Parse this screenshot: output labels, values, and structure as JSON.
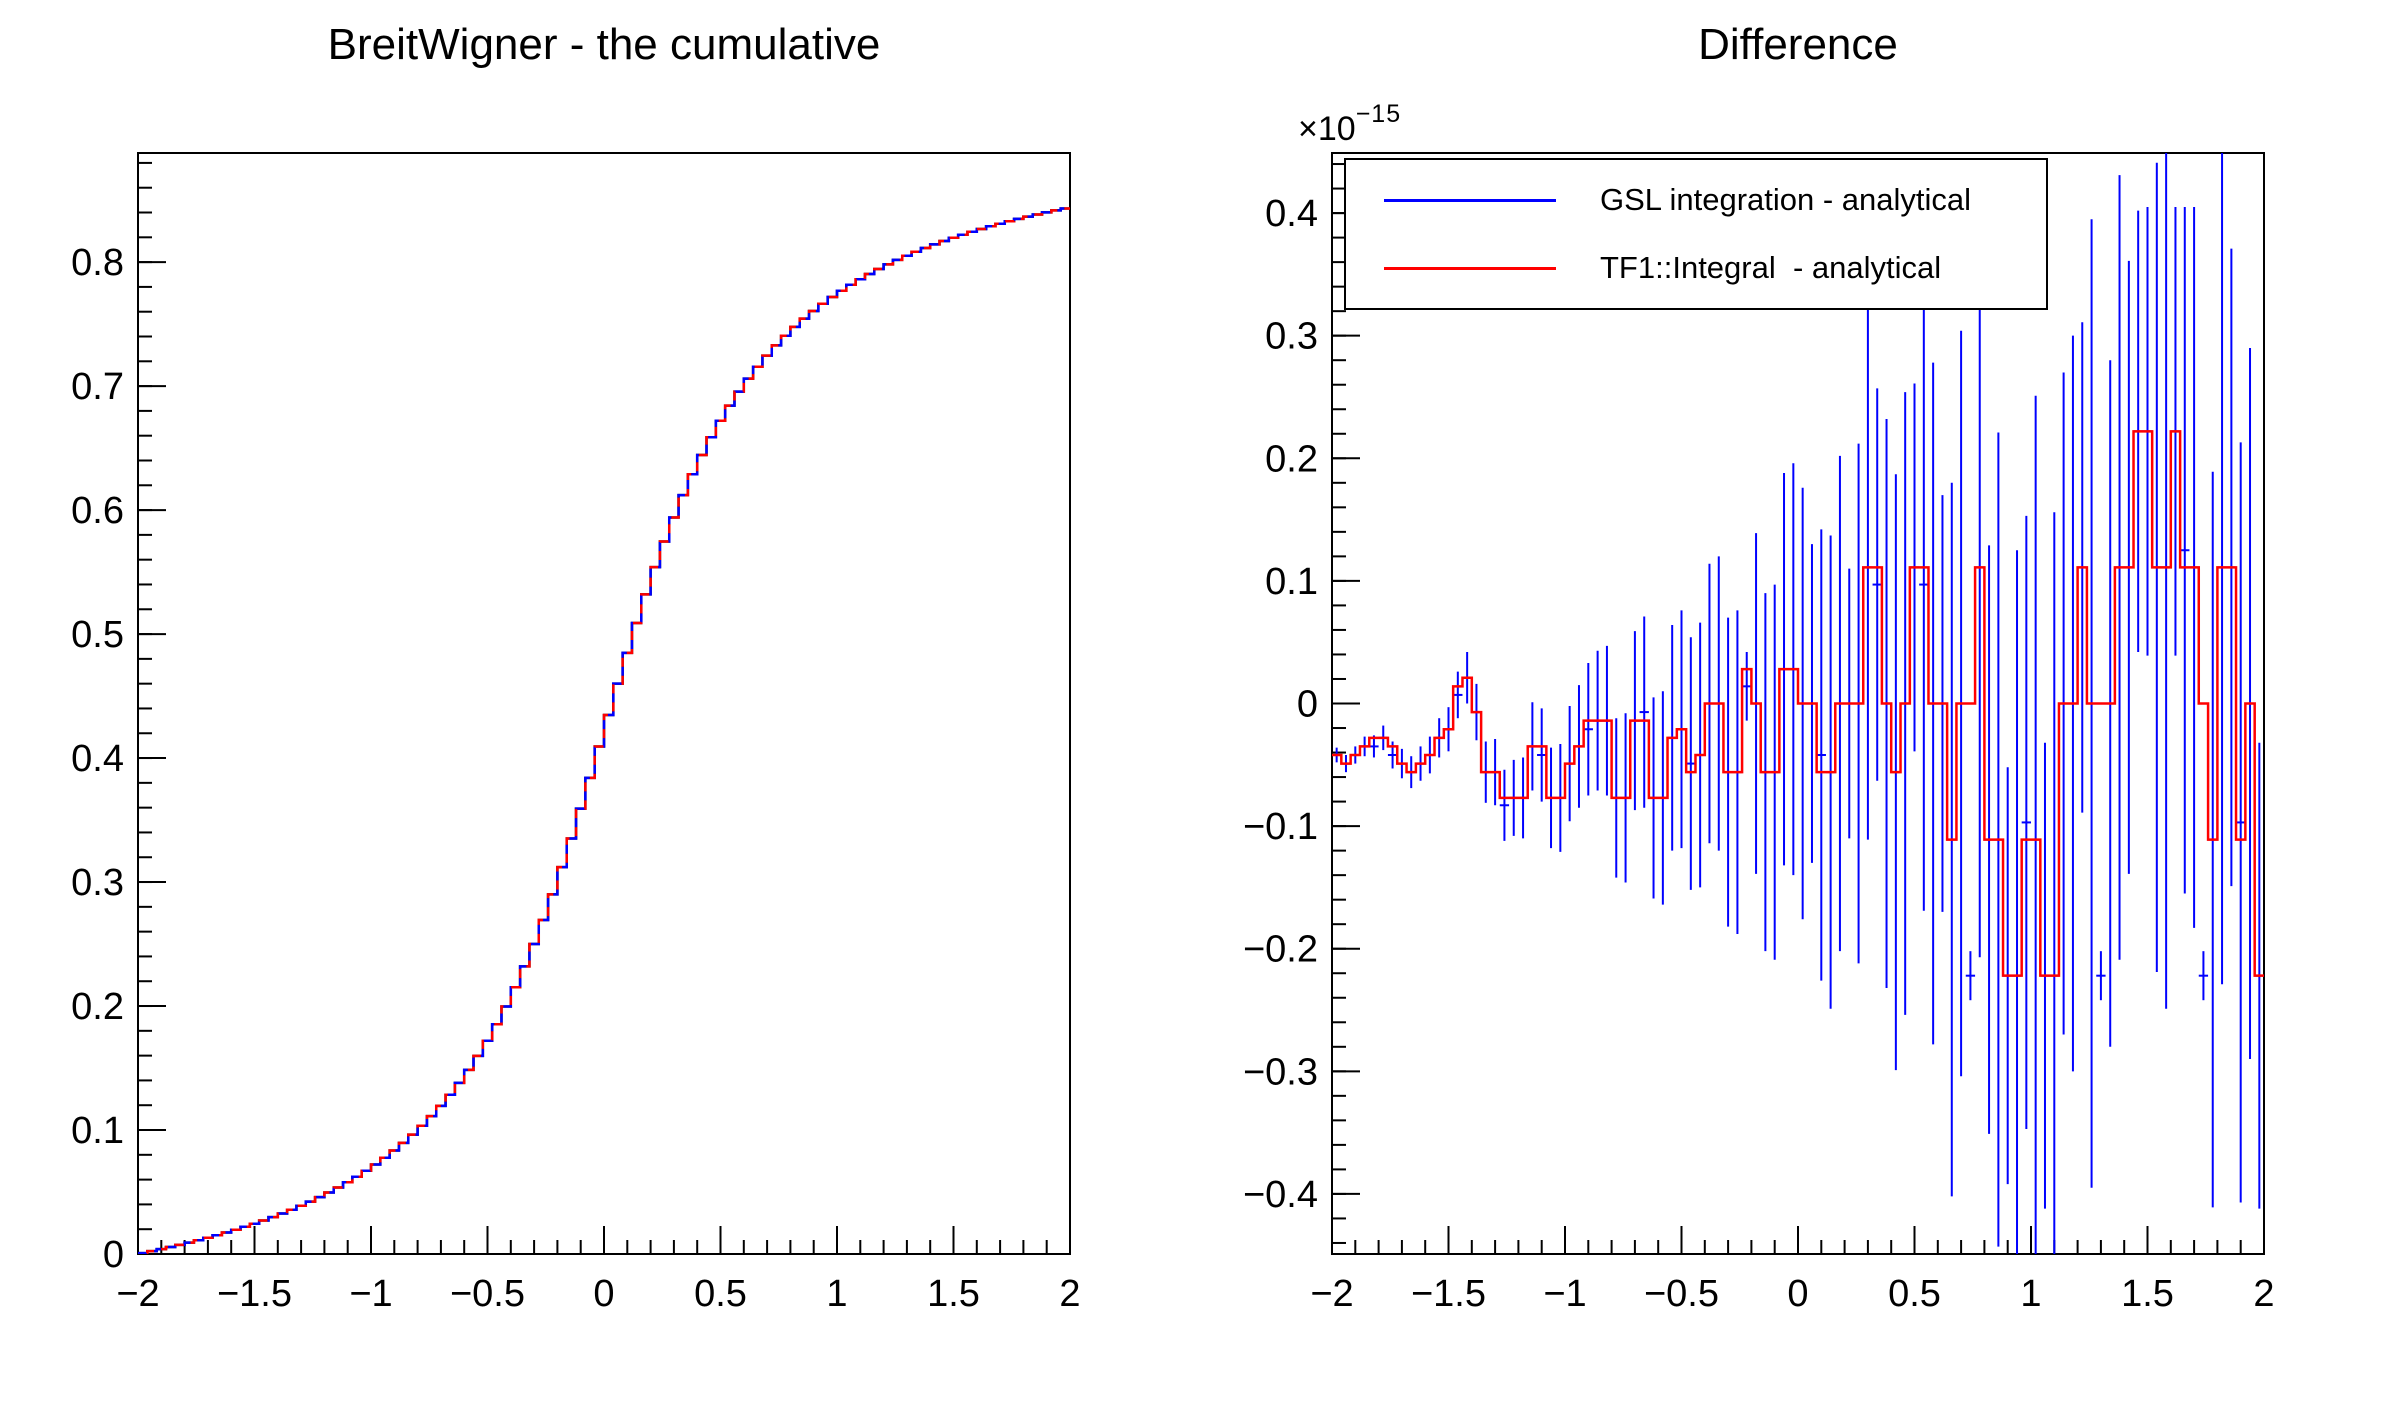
{
  "app": {
    "description_label": "ROOT canvas with two pads"
  },
  "left_panel": {
    "title": "BreitWigner - the cumulative"
  },
  "right_panel": {
    "title": "Difference",
    "offset_label": {
      "prefix": "×10",
      "exponent": "−15"
    },
    "legend": [
      {
        "label": "GSL integration - analytical",
        "color": "#0000ff"
      },
      {
        "label": "TF1::Integral  - analytical",
        "color": "#ff0000"
      }
    ]
  },
  "chart_data": [
    {
      "type": "line",
      "style": "step-histogram",
      "title": "BreitWigner - the cumulative",
      "xlabel": "",
      "ylabel": "",
      "xlim": [
        -2,
        2
      ],
      "ylim": [
        0,
        0.888
      ],
      "grid": false,
      "nbins": 100,
      "formula_js": "(Math.atan(2*x)+Math.atan(4))/Math.PI",
      "formula_note": "cumulative of Breit-Wigner (Cauchy, mean 0, gamma 0.5) integrated from -2",
      "hist_max": 0.844,
      "anchors_x": [
        -2,
        -1.5,
        -1,
        -0.5,
        0,
        0.5,
        1,
        1.5,
        2
      ],
      "anchors_y": [
        0,
        0.0244,
        0.0696,
        0.172,
        0.422,
        0.672,
        0.774,
        0.8196,
        0.844
      ],
      "series": [
        {
          "name": "analytical",
          "color": "#000000"
        },
        {
          "name": "GSL integration",
          "color": "#0000ff"
        },
        {
          "name": "TF1::Integral",
          "color": "#ff0000"
        }
      ],
      "xticks": {
        "values": [
          -2,
          -1.5,
          -1,
          -0.5,
          0,
          0.5,
          1,
          1.5,
          2
        ],
        "labels": [
          "−2",
          "−1.5",
          "−1",
          "−0.5",
          "0",
          "0.5",
          "1",
          "1.5",
          "2"
        ],
        "minor_step": 0.1
      },
      "yticks": {
        "values": [
          0,
          0.1,
          0.2,
          0.3,
          0.4,
          0.5,
          0.6,
          0.7,
          0.8
        ],
        "labels": [
          "0",
          "0.1",
          "0.2",
          "0.3",
          "0.4",
          "0.5",
          "0.6",
          "0.7",
          "0.8"
        ],
        "minor_step": 0.02
      }
    },
    {
      "type": "steps+errorbars",
      "title": "Difference",
      "unit": "×10^-15",
      "xlim": [
        -2,
        2
      ],
      "ylim": [
        -0.449,
        0.449
      ],
      "grid": false,
      "nbins": 100,
      "xticks": {
        "values": [
          -2,
          -1.5,
          -1,
          -0.5,
          0,
          0.5,
          1,
          1.5,
          2
        ],
        "labels": [
          "−2",
          "−1.5",
          "−1",
          "−0.5",
          "0",
          "0.5",
          "1",
          "1.5",
          "2"
        ],
        "minor_step": 0.1
      },
      "yticks": {
        "values": [
          -0.4,
          -0.3,
          -0.2,
          -0.1,
          0,
          0.1,
          0.2,
          0.3,
          0.4
        ],
        "labels": [
          "−0.4",
          "−0.3",
          "−0.2",
          "−0.1",
          "0",
          "0.1",
          "0.2",
          "0.3",
          "0.4"
        ],
        "minor_step": 0.02
      },
      "red_steps": {
        "name": "TF1::Integral - analytical",
        "color": "#ff0000",
        "values": [
          -0.042,
          -0.049,
          -0.042,
          -0.035,
          -0.028,
          -0.028,
          -0.035,
          -0.049,
          -0.056,
          -0.049,
          -0.042,
          -0.028,
          -0.021,
          0.014,
          0.021,
          -0.007,
          -0.056,
          -0.056,
          -0.077,
          -0.077,
          -0.077,
          -0.035,
          -0.035,
          -0.077,
          -0.077,
          -0.049,
          -0.035,
          -0.014,
          -0.014,
          -0.014,
          -0.077,
          -0.077,
          -0.014,
          -0.014,
          -0.077,
          -0.077,
          -0.028,
          -0.021,
          -0.056,
          -0.042,
          0,
          0,
          -0.056,
          -0.056,
          0.028,
          0,
          -0.056,
          -0.056,
          0.028,
          0.028,
          0,
          0,
          -0.056,
          -0.056,
          0,
          0,
          0,
          0.111,
          0.111,
          0,
          -0.056,
          0,
          0.111,
          0.111,
          0,
          0,
          -0.111,
          0,
          0,
          0.111,
          -0.111,
          -0.111,
          -0.222,
          -0.222,
          -0.111,
          -0.111,
          -0.222,
          -0.222,
          0,
          0,
          0.111,
          0,
          0,
          0,
          0.111,
          0.111,
          0.222,
          0.222,
          0.111,
          0.111,
          0.222,
          0.111,
          0.111,
          0,
          -0.111,
          0.111,
          0.111,
          -0.111,
          0,
          -0.222
        ]
      },
      "blue_points": {
        "name": "GSL integration - analytical",
        "color": "#0000ff",
        "values": [
          -0.042,
          -0.049,
          -0.042,
          -0.035,
          -0.035,
          -0.028,
          -0.042,
          -0.049,
          -0.056,
          -0.049,
          -0.042,
          -0.028,
          -0.021,
          0.007,
          0.021,
          -0.007,
          -0.056,
          -0.056,
          -0.083,
          -0.077,
          -0.077,
          -0.035,
          -0.042,
          -0.077,
          -0.077,
          -0.049,
          -0.035,
          -0.021,
          -0.014,
          -0.014,
          -0.077,
          -0.077,
          -0.014,
          -0.007,
          -0.077,
          -0.077,
          -0.028,
          -0.021,
          -0.049,
          -0.042,
          0,
          0,
          -0.056,
          -0.056,
          0.014,
          0,
          -0.056,
          -0.056,
          0.028,
          0.028,
          0,
          0,
          -0.042,
          -0.056,
          0,
          0,
          0,
          0.111,
          0.097,
          0,
          -0.056,
          0,
          0.111,
          0.097,
          0,
          0,
          -0.111,
          0,
          -0.222,
          0.111,
          -0.111,
          -0.111,
          -0.222,
          -0.222,
          -0.097,
          -0.111,
          -0.222,
          -0.222,
          0,
          0,
          0.111,
          0,
          -0.222,
          0,
          0.111,
          0.111,
          0.222,
          0.222,
          0.111,
          0.111,
          0.222,
          0.125,
          0.111,
          -0.222,
          -0.111,
          0.111,
          0.111,
          -0.097,
          0,
          -0.222
        ],
        "errors": [
          0.006,
          0.007,
          0.007,
          0.008,
          0.009,
          0.01,
          0.011,
          0.012,
          0.013,
          0.014,
          0.015,
          0.016,
          0.018,
          0.019,
          0.021,
          0.023,
          0.025,
          0.027,
          0.029,
          0.031,
          0.033,
          0.036,
          0.038,
          0.041,
          0.044,
          0.047,
          0.05,
          0.054,
          0.057,
          0.061,
          0.065,
          0.069,
          0.073,
          0.078,
          0.082,
          0.087,
          0.092,
          0.097,
          0.103,
          0.108,
          0.114,
          0.12,
          0.126,
          0.132,
          0.028,
          0.139,
          0.146,
          0.153,
          0.16,
          0.168,
          0.176,
          0.13,
          0.184,
          0.193,
          0.202,
          0.11,
          0.212,
          0.222,
          0.16,
          0.232,
          0.243,
          0.254,
          0.15,
          0.266,
          0.278,
          0.17,
          0.291,
          0.304,
          0.02,
          0.318,
          0.24,
          0.332,
          0.17,
          0.347,
          0.25,
          0.362,
          0.19,
          0.378,
          0.27,
          0.3,
          0.2,
          0.395,
          0.02,
          0.28,
          0.32,
          0.25,
          0.18,
          0.183,
          0.33,
          0.36,
          0.183,
          0.28,
          0.294,
          0.02,
          0.3,
          0.34,
          0.26,
          0.31,
          0.29,
          0.19
        ]
      }
    }
  ]
}
